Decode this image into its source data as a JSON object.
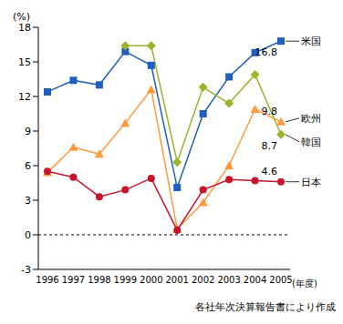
{
  "chart_data": {
    "type": "line",
    "y_label": "(%)",
    "x_label": "(年度)",
    "source": "各社年次決算報告書により作成",
    "categories": [
      "1996",
      "1997",
      "1998",
      "1999",
      "2000",
      "2001",
      "2002",
      "2003",
      "2004",
      "2005"
    ],
    "ylim": [
      -3,
      18
    ],
    "yticks": [
      -3,
      0,
      3,
      6,
      9,
      12,
      15,
      18
    ],
    "grid": false,
    "legend": "right",
    "series": [
      {
        "name": "米国",
        "color": "#1f5fbf",
        "marker": "square",
        "values": [
          12.4,
          13.4,
          13.0,
          15.9,
          14.7,
          4.1,
          10.5,
          13.7,
          15.8,
          16.8
        ],
        "value_labels": [
          null,
          null,
          null,
          null,
          null,
          null,
          null,
          null,
          null,
          "16.8"
        ]
      },
      {
        "name": "欧州",
        "color": "#ff9a3c",
        "marker": "triangle",
        "values": [
          5.4,
          7.6,
          7.0,
          9.7,
          12.6,
          0.5,
          2.8,
          6.0,
          10.9,
          9.8
        ],
        "value_labels": [
          null,
          null,
          null,
          null,
          null,
          null,
          null,
          null,
          null,
          "9.8"
        ]
      },
      {
        "name": "韓国",
        "color": "#9ab52a",
        "marker": "diamond",
        "values": [
          null,
          null,
          null,
          16.4,
          16.4,
          6.3,
          12.8,
          11.4,
          13.9,
          8.7
        ],
        "value_labels": [
          null,
          null,
          null,
          null,
          null,
          null,
          null,
          null,
          null,
          "8.7"
        ]
      },
      {
        "name": "日本",
        "color": "#c8142a",
        "marker": "circle",
        "values": [
          5.5,
          5.0,
          3.3,
          3.9,
          4.9,
          0.4,
          3.9,
          4.8,
          4.7,
          4.6
        ],
        "value_labels": [
          null,
          null,
          null,
          null,
          null,
          null,
          null,
          null,
          null,
          "4.6"
        ]
      }
    ]
  }
}
